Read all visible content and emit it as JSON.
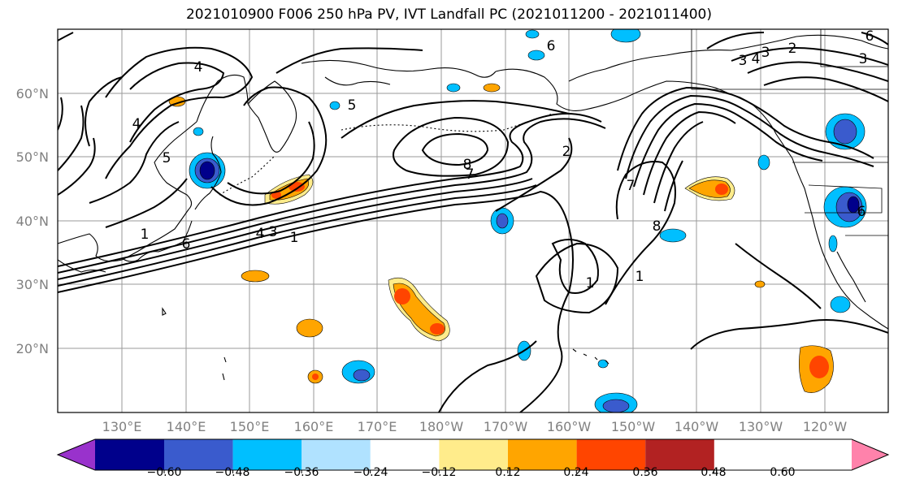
{
  "title": "2021010900 F006 250 hPa PV, IVT Landfall PC (2021011200 - 2021011400)",
  "map": {
    "lat_labels": [
      "60°N",
      "50°N",
      "40°N",
      "30°N",
      "20°N"
    ],
    "lon_labels": [
      "130°E",
      "140°E",
      "150°E",
      "160°E",
      "170°E",
      "180°W",
      "170°W",
      "160°W",
      "150°W",
      "140°W",
      "130°W",
      "120°W"
    ],
    "contour_labels": [
      "4",
      "5",
      "4",
      "5",
      "6",
      "8",
      "7",
      "2",
      "7",
      "1",
      "4",
      "3",
      "1",
      "1",
      "6",
      "8",
      "2",
      "1",
      "3",
      "3",
      "4",
      "6",
      "3",
      "6"
    ]
  },
  "colorbar": {
    "ticks": [
      "−0.60",
      "−0.48",
      "−0.36",
      "−0.24",
      "−0.12",
      "0.12",
      "0.24",
      "0.36",
      "0.48",
      "0.60"
    ],
    "colors": [
      "#9932cc",
      "#00008b",
      "#3a5bcd",
      "#00bfff",
      "#b0e2ff",
      "#ffffff",
      "#ffec8b",
      "#ffa500",
      "#ff4500",
      "#b22222",
      "#ff82ab"
    ]
  }
}
